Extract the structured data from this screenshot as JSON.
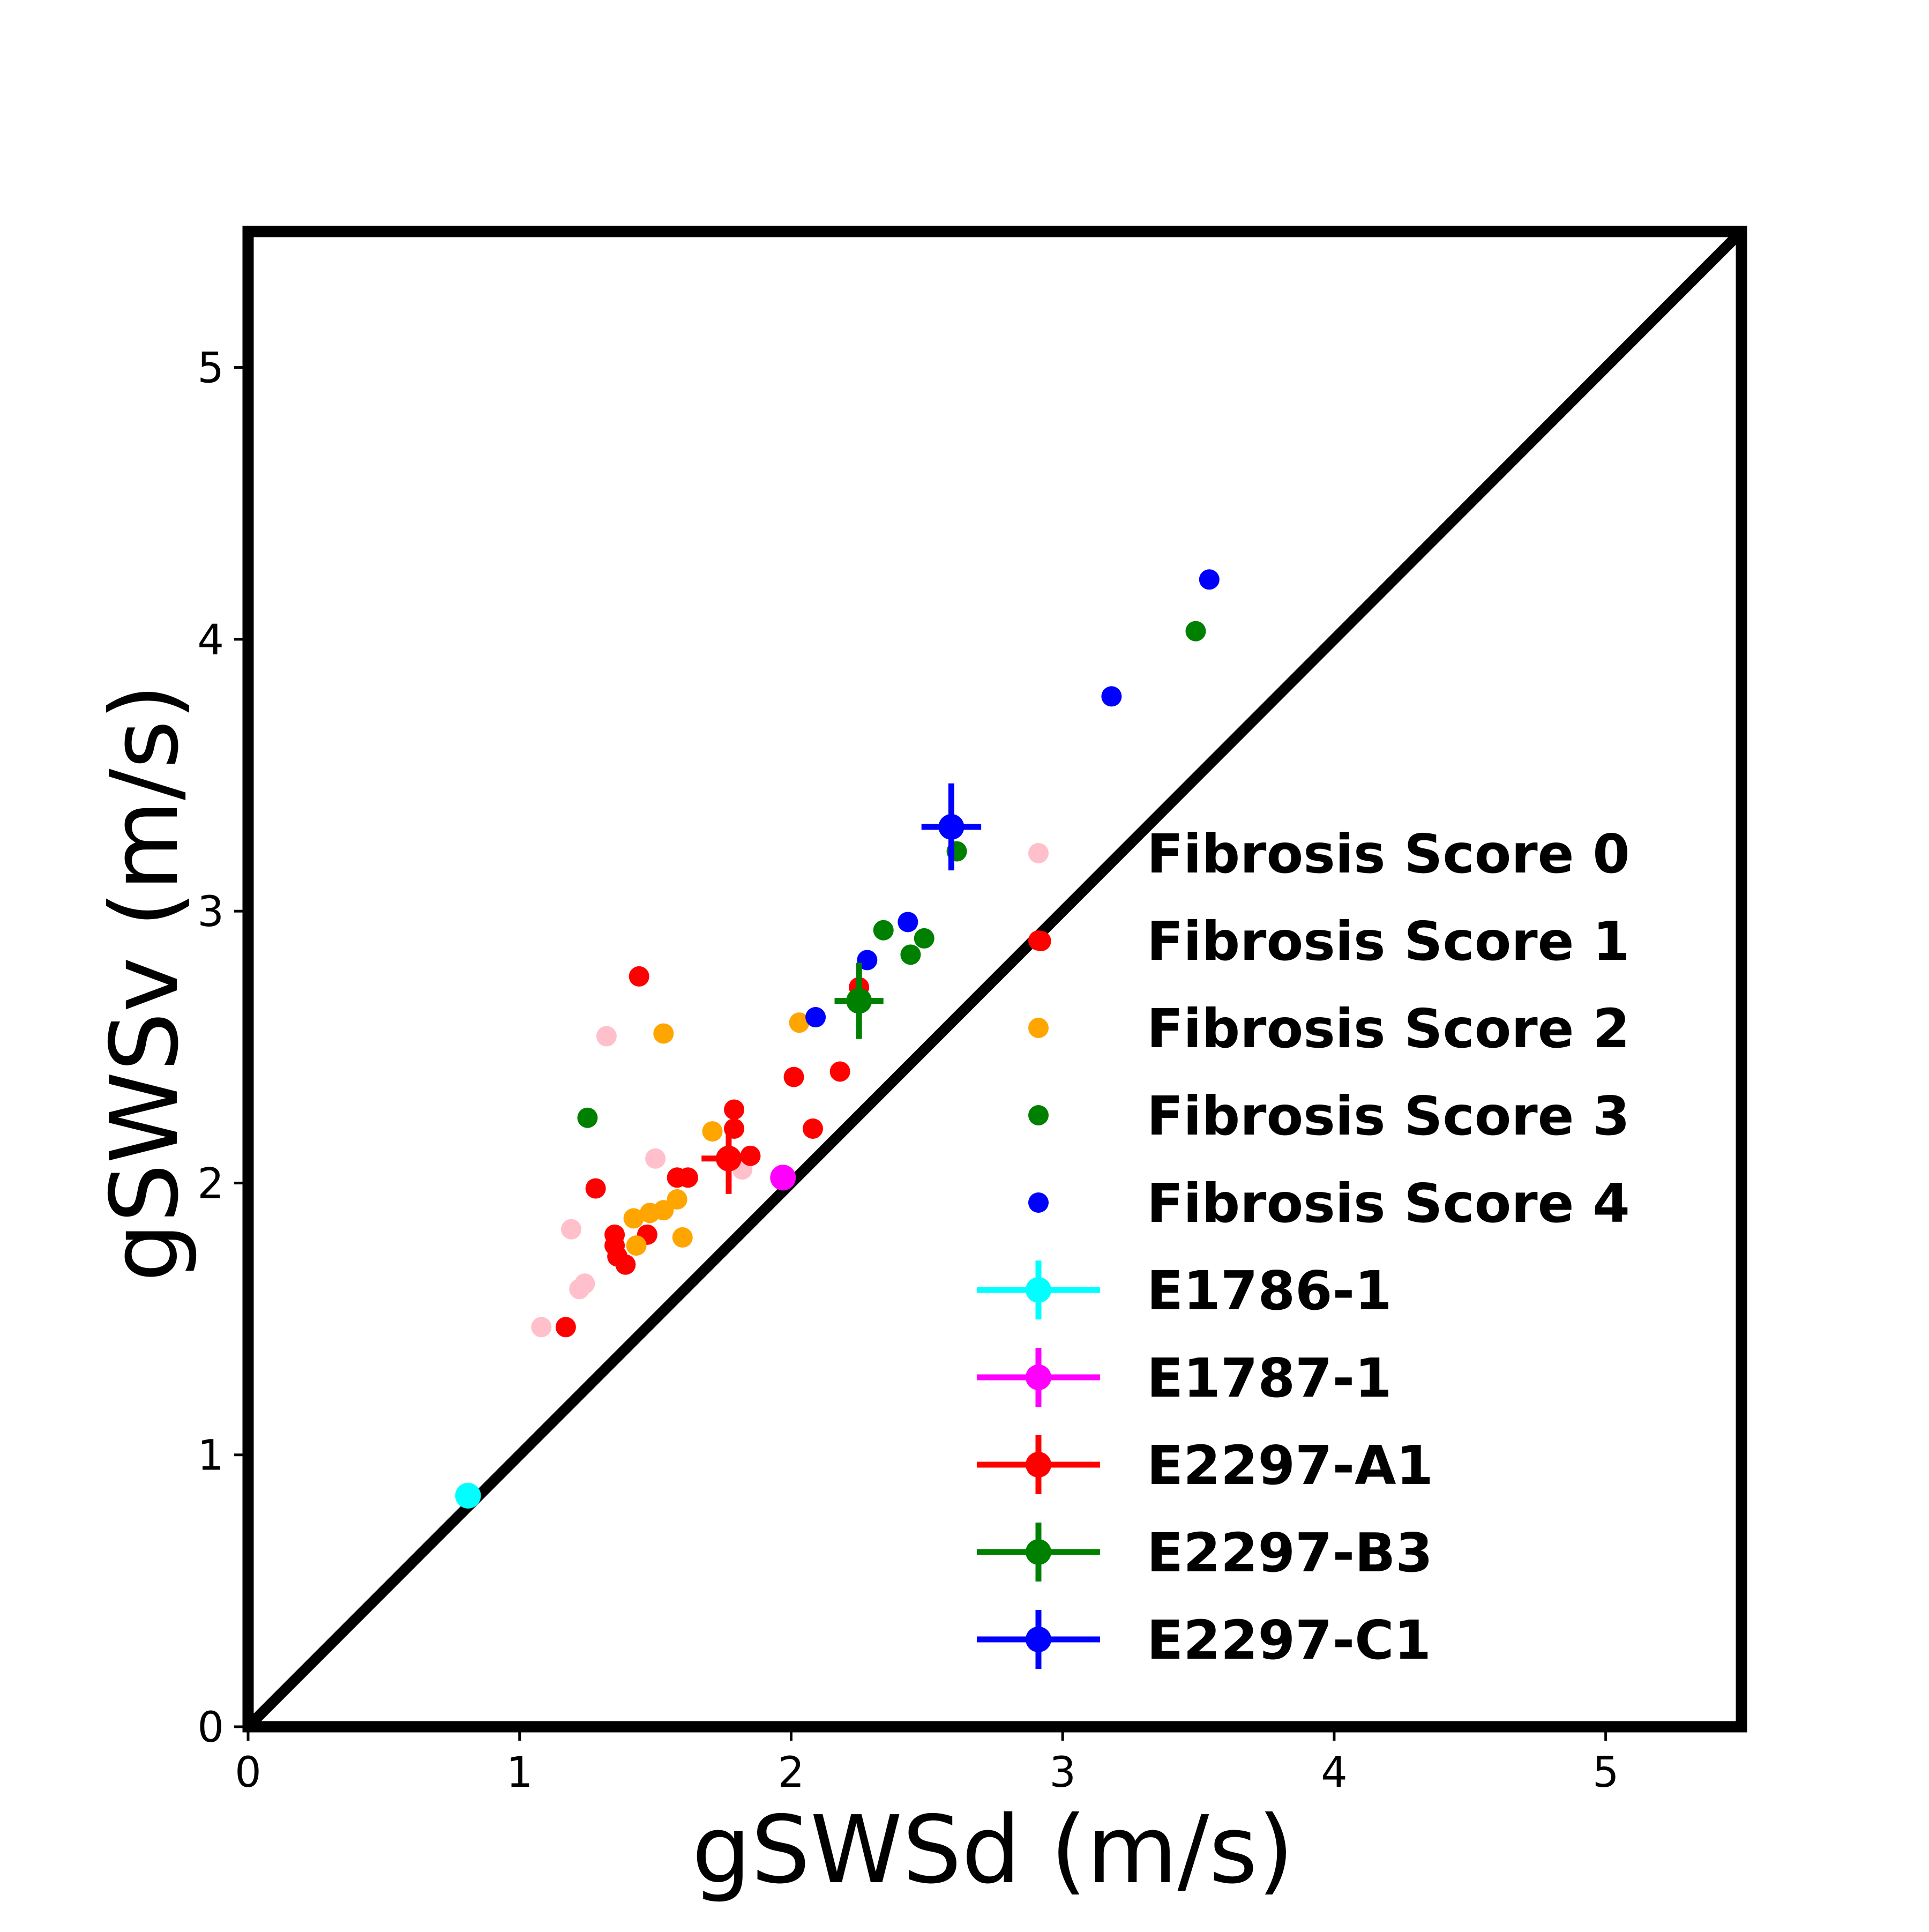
{
  "chart_data": {
    "type": "scatter",
    "xlabel": "gSWSd (m/s)",
    "ylabel": "gSWSv (m/s)",
    "xlim": [
      0,
      5.5
    ],
    "ylim": [
      0,
      5.5
    ],
    "x_ticks": [
      "0",
      "1",
      "2",
      "3",
      "4",
      "5"
    ],
    "y_ticks": [
      "0",
      "1",
      "2",
      "3",
      "4",
      "5"
    ],
    "grid": false,
    "legend_position": "lower-right",
    "identity_line": {
      "from": [
        0,
        0
      ],
      "to": [
        5.5,
        5.5
      ],
      "color": "#000000"
    },
    "series": [
      {
        "name": "Fibrosis Score 0",
        "color": "#ffc0cb",
        "points": [
          [
            1.08,
            1.47
          ],
          [
            1.19,
            1.83
          ],
          [
            1.22,
            1.61
          ],
          [
            1.24,
            1.63
          ],
          [
            1.32,
            2.54
          ],
          [
            1.5,
            2.09
          ],
          [
            1.82,
            2.05
          ]
        ]
      },
      {
        "name": "Fibrosis Score 1",
        "color": "#ff0000",
        "points": [
          [
            1.17,
            1.47
          ],
          [
            1.28,
            1.98
          ],
          [
            1.35,
            1.81
          ],
          [
            1.35,
            1.77
          ],
          [
            1.36,
            1.73
          ],
          [
            1.39,
            1.7
          ],
          [
            1.44,
            2.76
          ],
          [
            1.47,
            1.81
          ],
          [
            1.58,
            2.02
          ],
          [
            1.62,
            2.02
          ],
          [
            1.79,
            2.27
          ],
          [
            1.79,
            2.2
          ],
          [
            1.85,
            2.1
          ],
          [
            2.01,
            2.39
          ],
          [
            2.08,
            2.2
          ],
          [
            2.18,
            2.41
          ],
          [
            2.25,
            2.72
          ],
          [
            2.92,
            2.89
          ]
        ]
      },
      {
        "name": "Fibrosis Score 2",
        "color": "#ffa500",
        "points": [
          [
            1.42,
            1.87
          ],
          [
            1.43,
            1.77
          ],
          [
            1.48,
            1.89
          ],
          [
            1.53,
            1.9
          ],
          [
            1.53,
            2.55
          ],
          [
            1.58,
            1.94
          ],
          [
            1.6,
            1.8
          ],
          [
            1.71,
            2.19
          ],
          [
            2.03,
            2.59
          ]
        ]
      },
      {
        "name": "Fibrosis Score 3",
        "color": "#008000",
        "points": [
          [
            1.25,
            2.24
          ],
          [
            2.34,
            2.93
          ],
          [
            2.44,
            2.84
          ],
          [
            2.49,
            2.9
          ],
          [
            2.61,
            3.22
          ],
          [
            3.49,
            4.03
          ]
        ]
      },
      {
        "name": "Fibrosis Score 4",
        "color": "#0000ff",
        "points": [
          [
            2.09,
            2.61
          ],
          [
            2.28,
            2.82
          ],
          [
            2.43,
            2.96
          ],
          [
            3.18,
            3.79
          ],
          [
            3.54,
            4.22
          ]
        ]
      }
    ],
    "samples": [
      {
        "name": "E1786-1",
        "color": "#00ffff",
        "x": 0.81,
        "y": 0.85,
        "xerr": 0.03,
        "yerr": 0.03
      },
      {
        "name": "E1787-1",
        "color": "#ff00ff",
        "x": 1.97,
        "y": 2.02,
        "xerr": 0.03,
        "yerr": 0.03
      },
      {
        "name": "E2297-A1",
        "color": "#ff0000",
        "x": 1.77,
        "y": 2.09,
        "xerr": 0.1,
        "yerr": 0.13
      },
      {
        "name": "E2297-B3",
        "color": "#008000",
        "x": 2.25,
        "y": 2.67,
        "xerr": 0.09,
        "yerr": 0.14
      },
      {
        "name": "E2297-C1",
        "color": "#0000ff",
        "x": 2.59,
        "y": 3.31,
        "xerr": 0.11,
        "yerr": 0.16
      }
    ]
  }
}
